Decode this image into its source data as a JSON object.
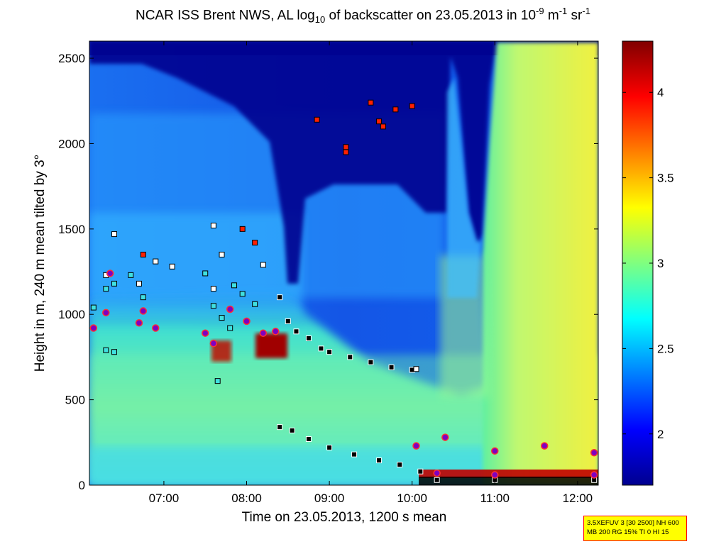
{
  "title": {
    "text": "NCAR ISS Brent NWS, AL log",
    "sub": "10",
    "text2": " of backscatter on 23.05.2013 in 10",
    "sup1": "-9",
    "text3": " m",
    "sup2": "-1",
    "text4": " sr",
    "sup3": "-1"
  },
  "info_box": {
    "line1": "3.5XEFUV 3 [30 2500] NH 600",
    "line2": "MB 200 RG 15% TI 0 HI 15"
  },
  "chart_data": {
    "type": "heatmap",
    "title": "NCAR ISS Brent NWS, AL log10 of backscatter on 23.05.2013 in 10^-9 m^-1 sr^-1",
    "xlabel": "Time on 23.05.2013, 1200 s mean",
    "ylabel": "Height in m, 240 m mean tilted by 3°",
    "xlim_hours": [
      6.1,
      12.25
    ],
    "ylim": [
      0,
      2600
    ],
    "x_ticks": [
      {
        "value": 7,
        "label": "07:00"
      },
      {
        "value": 8,
        "label": "08:00"
      },
      {
        "value": 9,
        "label": "09:00"
      },
      {
        "value": 10,
        "label": "10:00"
      },
      {
        "value": 11,
        "label": "11:00"
      },
      {
        "value": 12,
        "label": "12:00"
      }
    ],
    "y_ticks": [
      {
        "value": 0,
        "label": "0"
      },
      {
        "value": 500,
        "label": "500"
      },
      {
        "value": 1000,
        "label": "1000"
      },
      {
        "value": 1500,
        "label": "1500"
      },
      {
        "value": 2000,
        "label": "2000"
      },
      {
        "value": 2500,
        "label": "2500"
      }
    ],
    "colorbar": {
      "colormap": "jet",
      "range": [
        1.7,
        4.3
      ],
      "ticks": [
        {
          "value": 2,
          "label": "2"
        },
        {
          "value": 2.5,
          "label": "2.5"
        },
        {
          "value": 3,
          "label": "3"
        },
        {
          "value": 3.5,
          "label": "3.5"
        },
        {
          "value": 4,
          "label": "4"
        }
      ]
    },
    "series": [
      {
        "marker": "black-square",
        "points": [
          [
            8.4,
            1100
          ],
          [
            8.5,
            960
          ],
          [
            8.6,
            900
          ],
          [
            8.75,
            860
          ],
          [
            8.9,
            800
          ],
          [
            9.0,
            780
          ],
          [
            9.25,
            750
          ],
          [
            9.5,
            720
          ],
          [
            9.75,
            690
          ],
          [
            10.0,
            675
          ],
          [
            8.4,
            340
          ],
          [
            8.55,
            320
          ],
          [
            8.75,
            270
          ],
          [
            9.0,
            220
          ],
          [
            9.3,
            180
          ],
          [
            9.6,
            145
          ],
          [
            9.85,
            120
          ],
          [
            10.1,
            80
          ],
          [
            10.3,
            30
          ],
          [
            11.0,
            30
          ],
          [
            12.2,
            30
          ]
        ]
      },
      {
        "marker": "white-square",
        "points": [
          [
            6.4,
            1470
          ],
          [
            7.6,
            1520
          ],
          [
            7.7,
            1350
          ],
          [
            8.2,
            1290
          ],
          [
            10.05,
            680
          ],
          [
            7.1,
            1280
          ],
          [
            6.9,
            1310
          ],
          [
            6.3,
            1230
          ],
          [
            6.7,
            1180
          ],
          [
            7.6,
            1150
          ]
        ]
      },
      {
        "marker": "cyan-square",
        "points": [
          [
            6.15,
            1040
          ],
          [
            6.3,
            1150
          ],
          [
            6.4,
            1180
          ],
          [
            6.6,
            1230
          ],
          [
            6.75,
            1100
          ],
          [
            7.6,
            1050
          ],
          [
            7.7,
            980
          ],
          [
            7.8,
            920
          ],
          [
            7.95,
            1120
          ],
          [
            8.1,
            1060
          ],
          [
            7.65,
            610
          ],
          [
            6.3,
            790
          ],
          [
            6.4,
            780
          ],
          [
            7.5,
            1240
          ],
          [
            7.85,
            1170
          ]
        ]
      },
      {
        "marker": "red-square",
        "points": [
          [
            9.5,
            2240
          ],
          [
            9.6,
            2130
          ],
          [
            9.65,
            2100
          ],
          [
            9.8,
            2200
          ],
          [
            10.0,
            2220
          ],
          [
            8.85,
            2140
          ],
          [
            9.2,
            1980
          ],
          [
            9.2,
            1950
          ],
          [
            7.95,
            1500
          ],
          [
            8.1,
            1420
          ],
          [
            6.75,
            1350
          ]
        ]
      },
      {
        "marker": "purple-circle",
        "points": [
          [
            6.15,
            920
          ],
          [
            6.3,
            1010
          ],
          [
            6.35,
            1240
          ],
          [
            6.7,
            950
          ],
          [
            6.75,
            1020
          ],
          [
            6.9,
            920
          ],
          [
            7.5,
            890
          ],
          [
            7.6,
            830
          ],
          [
            7.8,
            1030
          ],
          [
            8.0,
            960
          ],
          [
            8.2,
            890
          ],
          [
            8.35,
            900
          ],
          [
            10.05,
            230
          ],
          [
            10.4,
            280
          ],
          [
            11.0,
            200
          ],
          [
            11.6,
            230
          ],
          [
            12.2,
            190
          ],
          [
            10.3,
            70
          ],
          [
            11.0,
            60
          ],
          [
            12.2,
            60
          ]
        ]
      }
    ]
  }
}
